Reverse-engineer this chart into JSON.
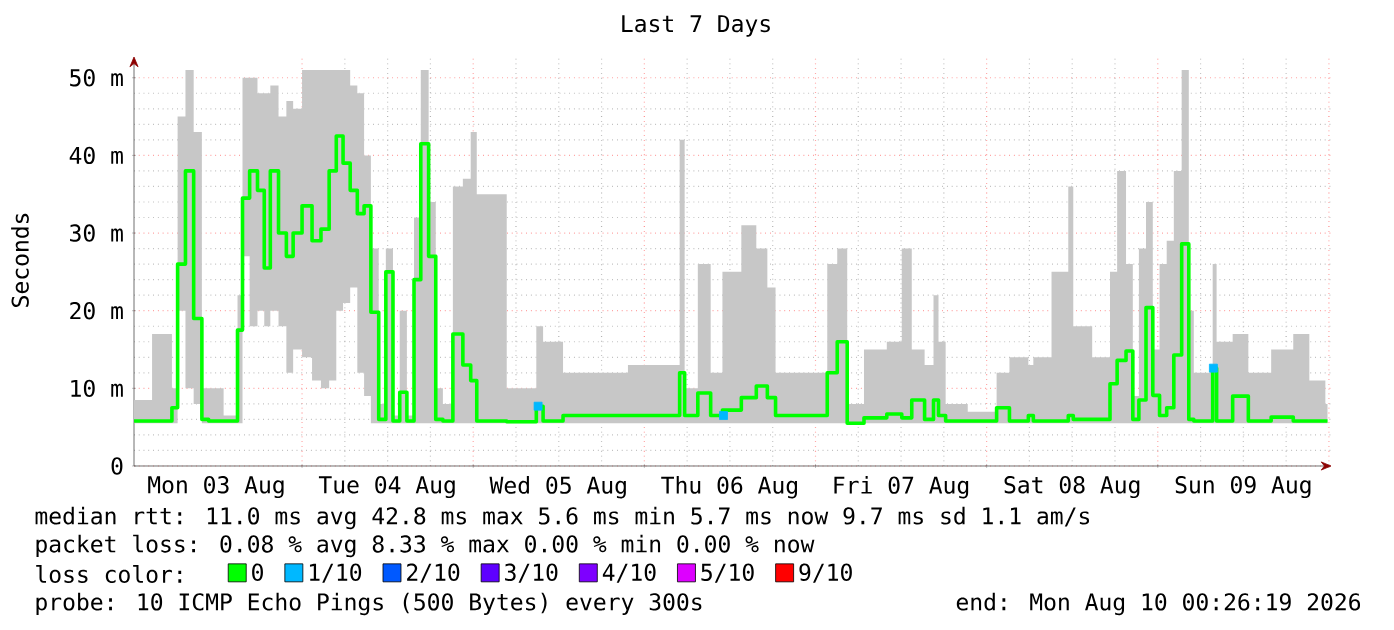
{
  "chart_data": {
    "type": "step",
    "title": "Last 7 Days",
    "ylabel": "Seconds",
    "annotations": [
      "median rtt: 11.0 ms avg 42.8 ms max 5.6 ms min 5.7 ms now 9.7 ms sd 1.1 am/s",
      "packet loss: 0.08 % avg 8.33 % max 0.00 % min 0.00 % now",
      "probe: 10 ICMP Echo Pings (500 Bytes) every 300s",
      "end: Mon Aug 10 00:26:19 2026"
    ],
    "legend_title": "loss color:",
    "legend": "bottom",
    "grid": true,
    "xlim": [
      "2026-08-03T00:26",
      "2026-08-10T00:26"
    ],
    "ylim": [
      0,
      52.8
    ],
    "xticks": [
      {
        "value": "2026-08-03T12:00",
        "label": "Mon 03 Aug"
      },
      {
        "value": "2026-08-04T12:00",
        "label": "Tue 04 Aug"
      },
      {
        "value": "2026-08-05T12:00",
        "label": "Wed 05 Aug"
      },
      {
        "value": "2026-08-06T12:00",
        "label": "Thu 06 Aug"
      },
      {
        "value": "2026-08-07T12:00",
        "label": "Fri 07 Aug"
      },
      {
        "value": "2026-08-08T12:00",
        "label": "Sat 08 Aug"
      },
      {
        "value": "2026-08-09T12:00",
        "label": "Sun 09 Aug"
      },
      {
        "value": "2026-08-04T00:00",
        "label": null
      },
      {
        "value": "2026-08-05T00:00",
        "label": null
      },
      {
        "value": "2026-08-06T00:00",
        "label": null
      },
      {
        "value": "2026-08-07T00:00",
        "label": null
      },
      {
        "value": "2026-08-08T00:00",
        "label": null
      },
      {
        "value": "2026-08-09T00:00",
        "label": null
      },
      {
        "value": "2026-08-10T00:00",
        "label": null
      }
    ],
    "yticks": [
      0,
      {
        "value": 10,
        "label": "10 m"
      },
      {
        "value": 20,
        "label": "20 m"
      },
      {
        "value": 30,
        "label": "30 m"
      },
      {
        "value": 40,
        "label": "40 m"
      },
      {
        "value": 50,
        "label": "50 m"
      }
    ],
    "x": [
      "2026-08-03T00:26",
      "2026-08-03T05:30",
      "2026-08-03T06:00",
      "2026-08-03T07:06",
      "2026-08-03T08:12",
      "2026-08-03T09:24",
      "2026-08-03T10:30",
      "2026-08-03T11:18",
      "2026-08-03T14:42",
      "2026-08-03T15:12",
      "2026-08-03T16:06",
      "2026-08-03T17:12",
      "2026-08-03T18:18",
      "2026-08-03T19:06",
      "2026-08-03T20:00",
      "2026-08-03T21:24",
      "2026-08-03T22:12",
      "2026-08-03T23:18",
      "2026-08-04T00:42",
      "2026-08-04T02:06",
      "2026-08-04T03:12",
      "2026-08-04T04:24",
      "2026-08-04T05:12",
      "2026-08-04T06:18",
      "2026-08-04T07:12",
      "2026-08-04T08:18",
      "2026-08-04T09:06",
      "2026-08-04T10:12",
      "2026-08-04T11:18",
      "2026-08-04T12:12",
      "2026-08-04T13:18",
      "2026-08-04T14:06",
      "2026-08-04T15:18",
      "2026-08-04T16:06",
      "2026-08-04T17:12",
      "2026-08-04T18:18",
      "2026-08-04T19:12",
      "2026-08-04T20:18",
      "2026-08-04T22:00",
      "2026-08-04T23:06",
      "2026-08-05T00:12",
      "2026-08-05T00:48",
      "2026-08-05T08:36",
      "2026-08-05T09:06",
      "2026-08-05T10:30",
      "2026-08-05T14:42",
      "2026-08-06T04:42",
      "2026-08-06T05:12",
      "2026-08-06T06:06",
      "2026-08-06T08:54",
      "2026-08-06T09:42",
      "2026-08-06T12:12",
      "2026-08-06T15:00",
      "2026-08-06T16:24",
      "2026-08-06T18:06",
      "2026-08-06T18:42",
      "2026-08-07T01:06",
      "2026-08-07T02:12",
      "2026-08-07T03:54",
      "2026-08-07T05:00",
      "2026-08-07T08:36",
      "2026-08-07T11:24",
      "2026-08-07T12:48",
      "2026-08-07T14:12",
      "2026-08-07T16:24",
      "2026-08-07T16:42",
      "2026-08-07T17:48",
      "2026-08-07T18:42",
      "2026-08-08T00:00",
      "2026-08-08T02:48",
      "2026-08-08T03:36",
      "2026-08-08T05:36",
      "2026-08-08T06:06",
      "2026-08-08T07:00",
      "2026-08-08T11:12",
      "2026-08-08T11:42",
      "2026-08-08T12:36",
      "2026-08-08T17:00",
      "2026-08-08T17:36",
      "2026-08-08T19:00",
      "2026-08-08T20:06",
      "2026-08-08T20:54",
      "2026-08-08T21:48",
      "2026-08-08T22:54",
      "2026-08-08T23:42",
      "2026-08-09T00:48",
      "2026-08-09T01:42",
      "2026-08-09T02:48",
      "2026-08-09T03:54",
      "2026-08-09T04:48",
      "2026-08-09T05:18",
      "2026-08-09T07:36",
      "2026-08-09T07:48",
      "2026-08-09T08:42",
      "2026-08-09T12:18",
      "2026-08-09T13:06",
      "2026-08-09T18:42",
      "2026-08-09T19:18",
      "2026-08-09T23:12",
      "2026-08-09T23:48"
    ],
    "series": [
      {
        "name": "0",
        "color": "#00ff00",
        "values": [
          5.8,
          5.8,
          7.5,
          26,
          38,
          19,
          6,
          5.8,
          5.8,
          17.5,
          34.5,
          38,
          35.5,
          25.5,
          38,
          30,
          27,
          30,
          33.5,
          29,
          30.5,
          38,
          42.5,
          39,
          35.5,
          32.5,
          33.5,
          19.8,
          6,
          25,
          5.8,
          9.5,
          5.8,
          24,
          41.5,
          27,
          6,
          5.8,
          17,
          13,
          11,
          5.8,
          5.7,
          7.7,
          5.8,
          6.5,
          6.5,
          12,
          6.5,
          9.4,
          6.5,
          7.2,
          8.8,
          10.3,
          8.8,
          6.5,
          6.5,
          12,
          16,
          5.5,
          6.2,
          6.7,
          6.2,
          8.5,
          6,
          8.5,
          6.5,
          5.8,
          5.8,
          7.5,
          5.8,
          5.8,
          6.5,
          5.8,
          5.8,
          6.5,
          6,
          6,
          10.6,
          13.6,
          14.8,
          6,
          8.5,
          20.4,
          9.1,
          6.5,
          7.5,
          14.3,
          28.6,
          6,
          5.8,
          5.8,
          12.6,
          5.8,
          9,
          5.8,
          6.3,
          5.8,
          5.8,
          5.8
        ],
        "upper": [
          8.5,
          17,
          10,
          45,
          51,
          43,
          10,
          10,
          6.5,
          22,
          50,
          50,
          48,
          48,
          49,
          45,
          47,
          46,
          51,
          51,
          51,
          51,
          51,
          51,
          49,
          48,
          40,
          28,
          8,
          28,
          6.5,
          20,
          6.5,
          32,
          51,
          34,
          10,
          8,
          36,
          37,
          43,
          35,
          10,
          18,
          16,
          12,
          13,
          42,
          10,
          26,
          12,
          25,
          31,
          28,
          23,
          12,
          12,
          26,
          28,
          8,
          15,
          16,
          28,
          15,
          13,
          22,
          16,
          8,
          7,
          12,
          14,
          14,
          13,
          14,
          25,
          36,
          18,
          14,
          25,
          38,
          26,
          9,
          28,
          34,
          15,
          26,
          29,
          38,
          51,
          20,
          12,
          12,
          26,
          16,
          17,
          12,
          15,
          17,
          11,
          8
        ],
        "lower": [
          5.5,
          5.5,
          5.5,
          20,
          10,
          8,
          5.5,
          5.5,
          5.5,
          5.5,
          27,
          18,
          20,
          18,
          20,
          18,
          12,
          15,
          14,
          11,
          10,
          11,
          20,
          21,
          23,
          12,
          9,
          5.5,
          5.5,
          5.5,
          5.5,
          5.5,
          5.5,
          5.5,
          5.5,
          5.5,
          5.5,
          5.5,
          5.5,
          5.5,
          5.5,
          5.5,
          5.5,
          5.5,
          5.5,
          5.5,
          5.5,
          5.5,
          5.5,
          5.5,
          5.5,
          5.5,
          5.5,
          5.5,
          5.5,
          5.5,
          5.5,
          5.5,
          5.5,
          5.5,
          5.5,
          5.5,
          5.5,
          5.5,
          5.5,
          5.5,
          5.5,
          5.5,
          5.5,
          5.5,
          5.5,
          5.5,
          5.5,
          5.5,
          5.5,
          5.5,
          5.5,
          5.5,
          5.5,
          5.5,
          5.5,
          5.5,
          5.5,
          5.5,
          5.5,
          5.5,
          5.5,
          5.5,
          5.5,
          5.5,
          5.5,
          5.5,
          5.5,
          5.5,
          5.5,
          5.5,
          5.5,
          5.5,
          5.5,
          5.5
        ]
      },
      {
        "name": "1/10",
        "color": "#00b8ff",
        "type": "scatter",
        "marker": "square",
        "x": [
          "2026-08-05T09:06",
          "2026-08-06T11:06",
          "2026-08-09T07:48"
        ],
        "values": [
          7.7,
          6.5,
          12.6
        ]
      },
      {
        "name": "2/10",
        "color": "#0059ff",
        "values": [
          null,
          null,
          null,
          null,
          null,
          null,
          null,
          null,
          null,
          null,
          null,
          null,
          null,
          null,
          null,
          null,
          null,
          null,
          null,
          null,
          null,
          null,
          null,
          null,
          null,
          null,
          null,
          null,
          null,
          null,
          null,
          null,
          null,
          null,
          null,
          null,
          null,
          null,
          null,
          null,
          null,
          null,
          null,
          null,
          null,
          null,
          null,
          null,
          null,
          null,
          null,
          null,
          null,
          null,
          null,
          null,
          null,
          null,
          null,
          null,
          null,
          null,
          null,
          null,
          null,
          null,
          null,
          null,
          null,
          null,
          null,
          null,
          null,
          null,
          null,
          null,
          null,
          null,
          null,
          null,
          null,
          null,
          null,
          null,
          null,
          null,
          null,
          null,
          null,
          null,
          null,
          null,
          null,
          null,
          null,
          null,
          null,
          null,
          null,
          null
        ]
      },
      {
        "name": "3/10",
        "color": "#5e00ff",
        "values": [
          null,
          null,
          null,
          null,
          null,
          null,
          null,
          null,
          null,
          null,
          null,
          null,
          null,
          null,
          null,
          null,
          null,
          null,
          null,
          null,
          null,
          null,
          null,
          null,
          null,
          null,
          null,
          null,
          null,
          null,
          null,
          null,
          null,
          null,
          null,
          null,
          null,
          null,
          null,
          null,
          null,
          null,
          null,
          null,
          null,
          null,
          null,
          null,
          null,
          null,
          null,
          null,
          null,
          null,
          null,
          null,
          null,
          null,
          null,
          null,
          null,
          null,
          null,
          null,
          null,
          null,
          null,
          null,
          null,
          null,
          null,
          null,
          null,
          null,
          null,
          null,
          null,
          null,
          null,
          null,
          null,
          null,
          null,
          null,
          null,
          null,
          null,
          null,
          null,
          null,
          null,
          null,
          null,
          null,
          null,
          null,
          null,
          null,
          null,
          null
        ]
      },
      {
        "name": "4/10",
        "color": "#7e00ff",
        "values": [
          null,
          null,
          null,
          null,
          null,
          null,
          null,
          null,
          null,
          null,
          null,
          null,
          null,
          null,
          null,
          null,
          null,
          null,
          null,
          null,
          null,
          null,
          null,
          null,
          null,
          null,
          null,
          null,
          null,
          null,
          null,
          null,
          null,
          null,
          null,
          null,
          null,
          null,
          null,
          null,
          null,
          null,
          null,
          null,
          null,
          null,
          null,
          null,
          null,
          null,
          null,
          null,
          null,
          null,
          null,
          null,
          null,
          null,
          null,
          null,
          null,
          null,
          null,
          null,
          null,
          null,
          null,
          null,
          null,
          null,
          null,
          null,
          null,
          null,
          null,
          null,
          null,
          null,
          null,
          null,
          null,
          null,
          null,
          null,
          null,
          null,
          null,
          null,
          null,
          null,
          null,
          null,
          null,
          null,
          null,
          null,
          null,
          null,
          null,
          null
        ]
      },
      {
        "name": "5/10",
        "color": "#dd00ff",
        "values": [
          null,
          null,
          null,
          null,
          null,
          null,
          null,
          null,
          null,
          null,
          null,
          null,
          null,
          null,
          null,
          null,
          null,
          null,
          null,
          null,
          null,
          null,
          null,
          null,
          null,
          null,
          null,
          null,
          null,
          null,
          null,
          null,
          null,
          null,
          null,
          null,
          null,
          null,
          null,
          null,
          null,
          null,
          null,
          null,
          null,
          null,
          null,
          null,
          null,
          null,
          null,
          null,
          null,
          null,
          null,
          null,
          null,
          null,
          null,
          null,
          null,
          null,
          null,
          null,
          null,
          null,
          null,
          null,
          null,
          null,
          null,
          null,
          null,
          null,
          null,
          null,
          null,
          null,
          null,
          null,
          null,
          null,
          null,
          null,
          null,
          null,
          null,
          null,
          null,
          null,
          null,
          null,
          null,
          null,
          null,
          null,
          null,
          null,
          null,
          null
        ]
      },
      {
        "name": "9/10",
        "color": "#ff0000",
        "values": [
          null,
          null,
          null,
          null,
          null,
          null,
          null,
          null,
          null,
          null,
          null,
          null,
          null,
          null,
          null,
          null,
          null,
          null,
          null,
          null,
          null,
          null,
          null,
          null,
          null,
          null,
          null,
          null,
          null,
          null,
          null,
          null,
          null,
          null,
          null,
          null,
          null,
          null,
          null,
          null,
          null,
          null,
          null,
          null,
          null,
          null,
          null,
          null,
          null,
          null,
          null,
          null,
          null,
          null,
          null,
          null,
          null,
          null,
          null,
          null,
          null,
          null,
          null,
          null,
          null,
          null,
          null,
          null,
          null,
          null,
          null,
          null,
          null,
          null,
          null,
          null,
          null,
          null,
          null,
          null,
          null,
          null,
          null,
          null,
          null,
          null,
          null,
          null,
          null,
          null,
          null,
          null,
          null,
          null,
          null,
          null,
          null,
          null,
          null,
          null
        ]
      }
    ]
  }
}
